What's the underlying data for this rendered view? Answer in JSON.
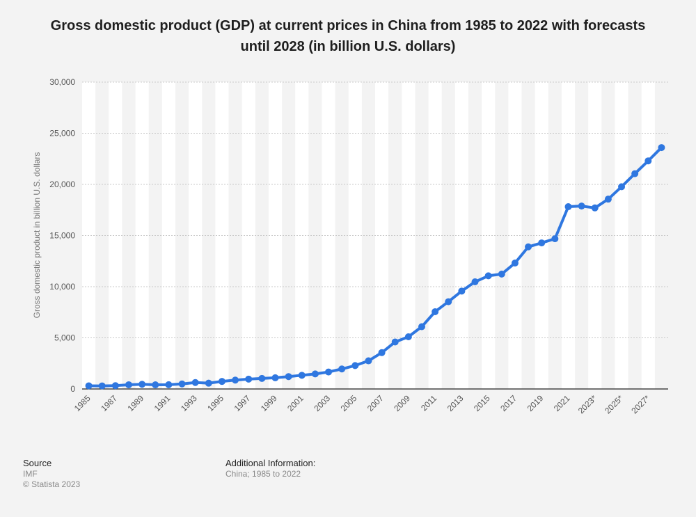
{
  "title": "Gross domestic product (GDP) at current prices in China from 1985 to 2022 with forecasts until 2028 (in billion U.S. dollars)",
  "footer": {
    "source_label": "Source",
    "source_value": "IMF",
    "copyright": "© Statista 2023",
    "additional_label": "Additional Information:",
    "additional_value": "China; 1985 to 2022"
  },
  "colors": {
    "line": "#2f77e0",
    "band": "#ffffff",
    "grid": "#c8c8c8",
    "axis": "#222222",
    "tick_text": "#555555"
  },
  "chart_data": {
    "type": "line",
    "title": "Gross domestic product (GDP) at current prices in China from 1985 to 2022 with forecasts until 2028 (in billion U.S. dollars)",
    "xlabel": "",
    "ylabel": "Gross domestic product in billion U.S. dollars",
    "ylim": [
      0,
      30000
    ],
    "yticks": [
      0,
      5000,
      10000,
      15000,
      20000,
      25000,
      30000
    ],
    "ytick_labels": [
      "0",
      "5,000",
      "10,000",
      "15,000",
      "20,000",
      "25,000",
      "30,000"
    ],
    "grid": true,
    "categories": [
      "1985",
      "1986",
      "1987",
      "1988",
      "1989",
      "1990",
      "1991",
      "1992",
      "1993",
      "1994",
      "1995",
      "1996",
      "1997",
      "1998",
      "1999",
      "2000",
      "2001",
      "2002",
      "2003",
      "2004",
      "2005",
      "2006",
      "2007",
      "2008",
      "2009",
      "2010",
      "2011",
      "2012",
      "2013",
      "2014",
      "2015",
      "2016",
      "2017",
      "2018",
      "2019",
      "2020",
      "2021",
      "2022",
      "2023*",
      "2024*",
      "2025*",
      "2026*",
      "2027*",
      "2028*"
    ],
    "xtick_labels": [
      "1985",
      "1987",
      "1989",
      "1991",
      "1993",
      "1995",
      "1997",
      "1999",
      "2001",
      "2003",
      "2005",
      "2007",
      "2009",
      "2011",
      "2013",
      "2015",
      "2017",
      "2019",
      "2021",
      "2023*",
      "2025*",
      "2027*"
    ],
    "series": [
      {
        "name": "GDP",
        "values": [
          310,
          301,
          327,
          410,
          460,
          405,
          416,
          495,
          628,
          567,
          737,
          868,
          965,
          1032,
          1094,
          1211,
          1339,
          1471,
          1660,
          1955,
          2286,
          2752,
          3552,
          4594,
          5102,
          6087,
          7551,
          8532,
          9570,
          10475,
          11062,
          11233,
          12310,
          13894,
          14280,
          14688,
          17820,
          17882,
          17700,
          18560,
          19770,
          21050,
          22300,
          23600
        ]
      }
    ]
  }
}
